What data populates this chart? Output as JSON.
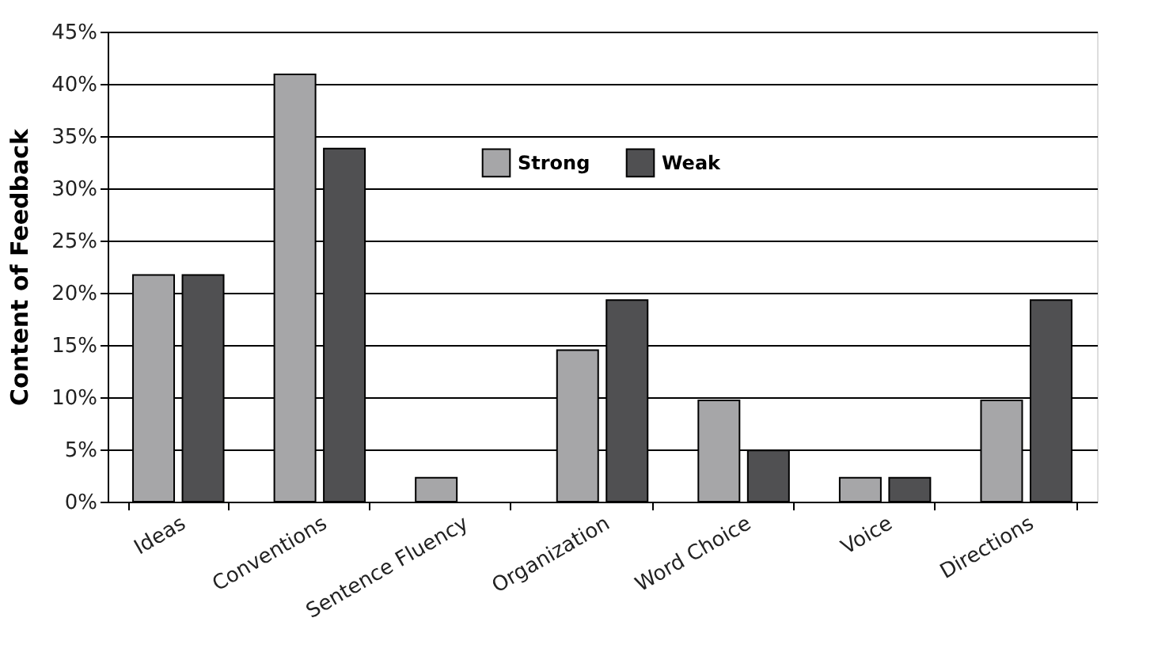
{
  "chart_data": {
    "type": "bar",
    "ylabel": "Content of Feedback",
    "categories": [
      "Ideas",
      "Conventions",
      "Sentence Fluency",
      "Organization",
      "Word Choice",
      "Voice",
      "Directions"
    ],
    "series": [
      {
        "name": "Strong",
        "color": "#a6a6a8",
        "values": [
          21.7,
          40.9,
          2.3,
          14.5,
          9.7,
          2.3,
          9.7
        ]
      },
      {
        "name": "Weak",
        "color": "#505052",
        "values": [
          21.7,
          33.8,
          null,
          19.3,
          4.9,
          2.3,
          19.3
        ]
      }
    ],
    "ylim": [
      0,
      45
    ],
    "yticks": [
      {
        "value": 0,
        "label": "0%"
      },
      {
        "value": 5,
        "label": "5%"
      },
      {
        "value": 10,
        "label": "10%"
      },
      {
        "value": 15,
        "label": "15%"
      },
      {
        "value": 20,
        "label": "20%"
      },
      {
        "value": 25,
        "label": "25%"
      },
      {
        "value": 30,
        "label": "30%"
      },
      {
        "value": 35,
        "label": "35%"
      },
      {
        "value": 40,
        "label": "40%"
      },
      {
        "value": 45,
        "label": "45%"
      }
    ],
    "grid": "y",
    "legend": "top"
  }
}
